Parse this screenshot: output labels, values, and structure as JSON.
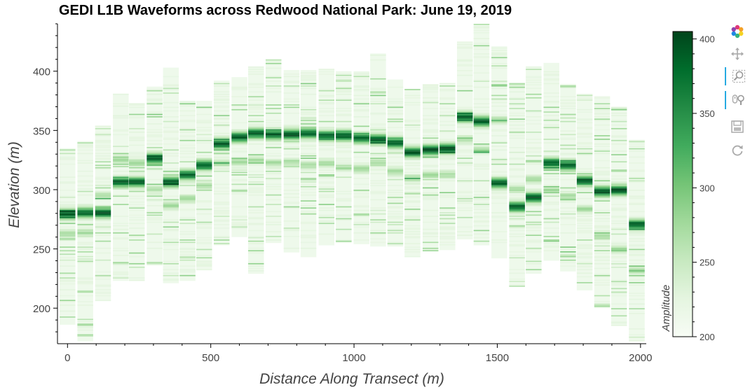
{
  "chart_data": {
    "type": "heatmap",
    "title": "GEDI L1B Waveforms across Redwood National Park: June 19, 2019",
    "xlabel": "Distance Along Transect (m)",
    "ylabel": "Elevation (m)",
    "xlim": [
      -35,
      2020
    ],
    "ylim": [
      170,
      440
    ],
    "x_ticks": [
      0,
      500,
      1000,
      1500,
      2000
    ],
    "y_ticks": [
      200,
      250,
      300,
      350,
      400
    ],
    "bar_width_m": 55,
    "colorbar": {
      "label": "Amplitude",
      "range": [
        200,
        405
      ],
      "ticks": [
        200,
        250,
        300,
        350,
        400
      ],
      "colors": [
        "#f7fcf5",
        "#e5f5e0",
        "#c7e9c0",
        "#a1d99b",
        "#74c476",
        "#41ab5d",
        "#238b45",
        "#006d2c",
        "#00441b"
      ]
    },
    "waveforms": [
      {
        "x": 0,
        "top": 335,
        "bottom": 186,
        "peak": 279,
        "peak2": 262
      },
      {
        "x": 62,
        "top": 341,
        "bottom": 172,
        "peak": 280,
        "peak2": 263
      },
      {
        "x": 124,
        "top": 354,
        "bottom": 206,
        "peak": 280,
        "peak2": 294
      },
      {
        "x": 186,
        "top": 381,
        "bottom": 223,
        "peak": 306,
        "peak2": 325
      },
      {
        "x": 242,
        "top": 373,
        "bottom": 223,
        "peak": 306,
        "peak2": 322
      },
      {
        "x": 304,
        "top": 387,
        "bottom": 236,
        "peak": 326,
        "peak2": 300
      },
      {
        "x": 361,
        "top": 403,
        "bottom": 221,
        "peak": 306,
        "peak2": 286
      },
      {
        "x": 419,
        "top": 375,
        "bottom": 223,
        "peak": 312,
        "peak2": 292
      },
      {
        "x": 477,
        "top": 375,
        "bottom": 232,
        "peak": 320,
        "peak2": 303
      },
      {
        "x": 538,
        "top": 392,
        "bottom": 253,
        "peak": 338,
        "peak2": 322
      },
      {
        "x": 600,
        "top": 395,
        "bottom": 260,
        "peak": 344,
        "peak2": 323
      },
      {
        "x": 658,
        "top": 404,
        "bottom": 229,
        "peak": 347,
        "peak2": 324
      },
      {
        "x": 719,
        "top": 410,
        "bottom": 255,
        "peak": 346,
        "peak2": 322
      },
      {
        "x": 782,
        "top": 401,
        "bottom": 247,
        "peak": 346,
        "peak2": 323
      },
      {
        "x": 841,
        "top": 401,
        "bottom": 243,
        "peak": 347,
        "peak2": 320
      },
      {
        "x": 904,
        "top": 402,
        "bottom": 253,
        "peak": 345,
        "peak2": 322
      },
      {
        "x": 964,
        "top": 400,
        "bottom": 255,
        "peak": 345,
        "peak2": 318
      },
      {
        "x": 1026,
        "top": 400,
        "bottom": 254,
        "peak": 343,
        "peak2": 317
      },
      {
        "x": 1084,
        "top": 415,
        "bottom": 252,
        "peak": 342,
        "peak2": 322
      },
      {
        "x": 1144,
        "top": 393,
        "bottom": 252,
        "peak": 339,
        "peak2": 315
      },
      {
        "x": 1204,
        "top": 385,
        "bottom": 243,
        "peak": 331,
        "peak2": 309
      },
      {
        "x": 1267,
        "top": 389,
        "bottom": 248,
        "peak": 333,
        "peak2": 312
      },
      {
        "x": 1326,
        "top": 390,
        "bottom": 249,
        "peak": 334,
        "peak2": 312
      },
      {
        "x": 1387,
        "top": 425,
        "bottom": 258,
        "peak": 361,
        "peak2": 342
      },
      {
        "x": 1445,
        "top": 440,
        "bottom": 253,
        "peak": 357,
        "peak2": 333
      },
      {
        "x": 1507,
        "top": 421,
        "bottom": 242,
        "peak": 305,
        "peak2": 358
      },
      {
        "x": 1569,
        "top": 390,
        "bottom": 218,
        "peak": 285,
        "peak2": 300
      },
      {
        "x": 1627,
        "top": 404,
        "bottom": 229,
        "peak": 293,
        "peak2": 308
      },
      {
        "x": 1689,
        "top": 407,
        "bottom": 240,
        "peak": 322,
        "peak2": 299
      },
      {
        "x": 1747,
        "top": 389,
        "bottom": 231,
        "peak": 320,
        "peak2": 294
      },
      {
        "x": 1805,
        "top": 381,
        "bottom": 215,
        "peak": 307,
        "peak2": 283
      },
      {
        "x": 1866,
        "top": 379,
        "bottom": 200,
        "peak": 298,
        "peak2": 260
      },
      {
        "x": 1925,
        "top": 370,
        "bottom": 185,
        "peak": 299,
        "peak2": 249
      },
      {
        "x": 1987,
        "top": 342,
        "bottom": 172,
        "peak": 270,
        "peak2": 231
      }
    ]
  },
  "toolbar": {
    "tools": [
      {
        "name": "bokeh-logo",
        "icon": "bokeh-logo-icon",
        "active": false
      },
      {
        "name": "pan",
        "icon": "pan-icon",
        "active": false
      },
      {
        "name": "box-zoom",
        "icon": "box-zoom-icon",
        "active": true
      },
      {
        "name": "wheel-zoom",
        "icon": "wheel-zoom-icon",
        "active": true
      },
      {
        "name": "save",
        "icon": "save-icon",
        "active": false
      },
      {
        "name": "reset",
        "icon": "reset-icon",
        "active": false
      }
    ]
  }
}
